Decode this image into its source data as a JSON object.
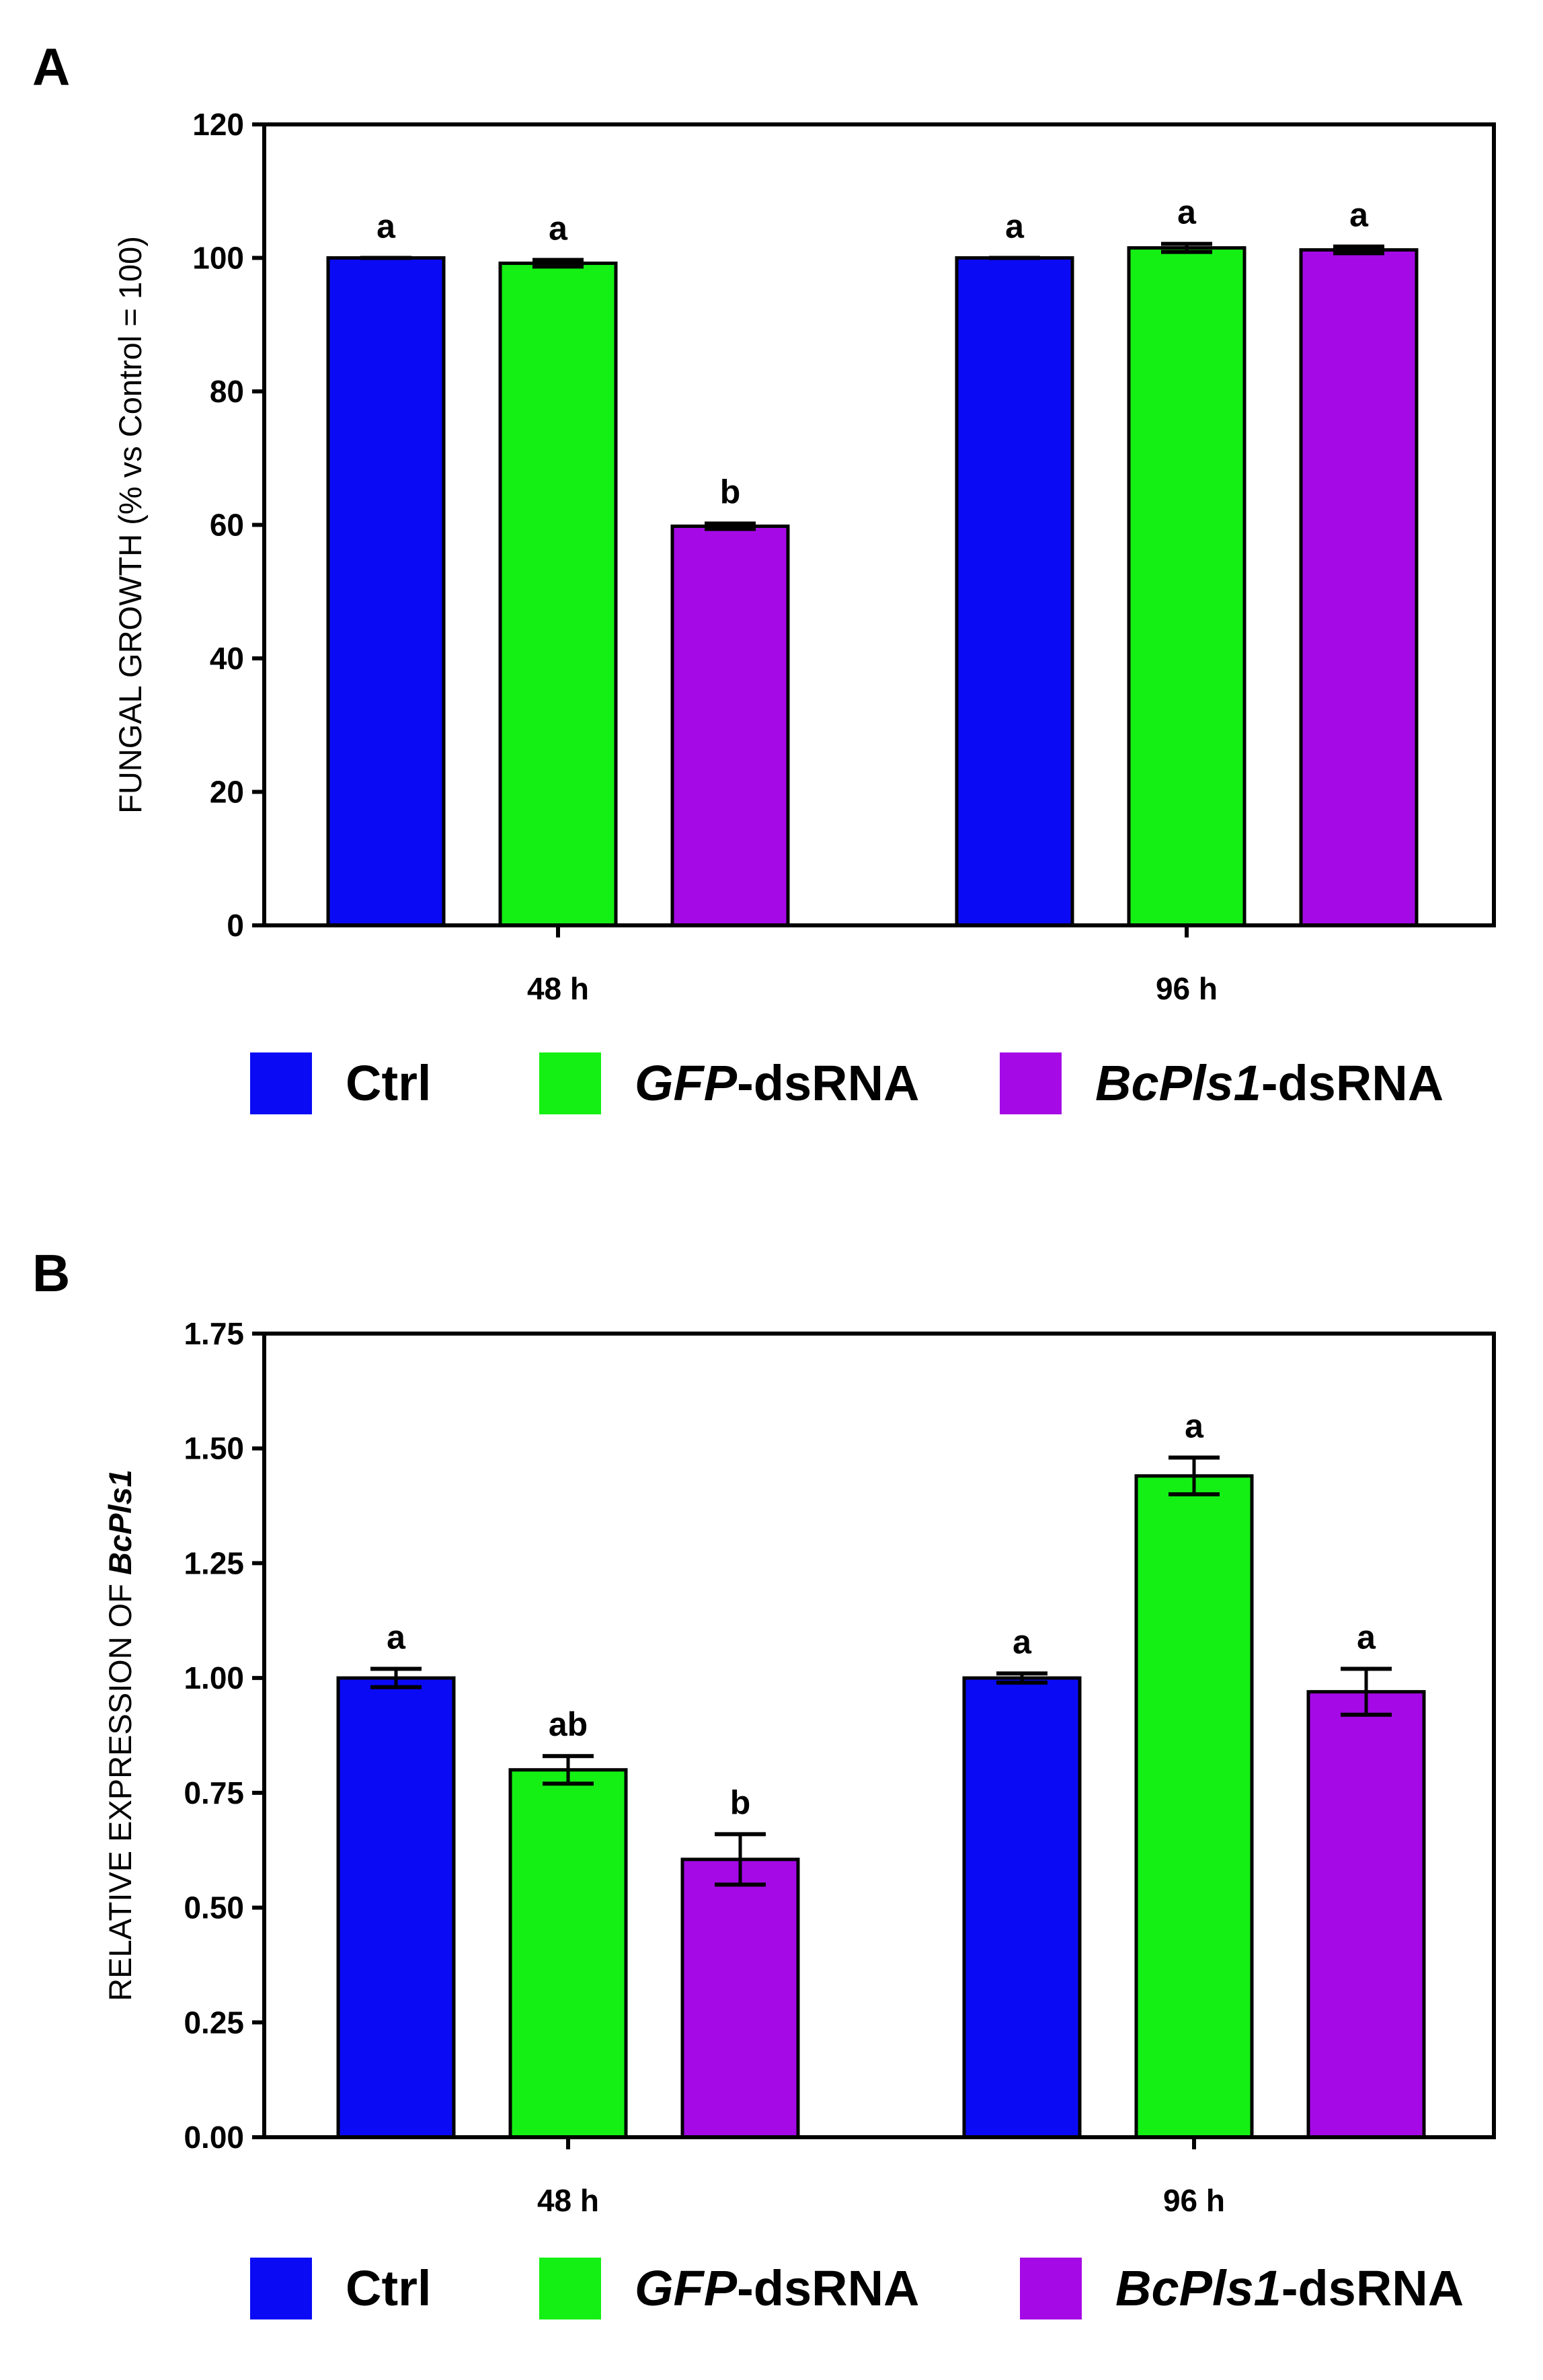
{
  "chart_data": [
    {
      "type": "bar",
      "panel": "A",
      "categories": [
        "48 h",
        "96 h"
      ],
      "series": [
        {
          "name": "Ctrl",
          "color": "#0a0af5",
          "values": [
            100,
            100
          ],
          "errors": [
            0,
            0
          ],
          "sig": [
            "a",
            "a"
          ]
        },
        {
          "name": "GFP-dsRNA",
          "color": "#14f014",
          "values": [
            99.2,
            101.5
          ],
          "errors": [
            0.5,
            0.6
          ],
          "sig": [
            "a",
            "a"
          ]
        },
        {
          "name": "BcPls1-dsRNA",
          "color": "#a50ae6",
          "values": [
            59.8,
            101.2
          ],
          "errors": [
            0.4,
            0.5
          ],
          "sig": [
            "b",
            "a"
          ]
        }
      ],
      "ylabel": "FUNGAL GROWTH (% vs Control = 100)",
      "ylim": [
        0,
        120
      ],
      "yticks": [
        "0",
        "20",
        "40",
        "60",
        "80",
        "100",
        "120"
      ],
      "legend": [
        {
          "italic": "",
          "text": "Ctrl"
        },
        {
          "italic": "GFP",
          "text": "-dsRNA"
        },
        {
          "italic": "BcPls1",
          "text": "-dsRNA"
        }
      ]
    },
    {
      "type": "bar",
      "panel": "B",
      "categories": [
        "48 h",
        "96 h"
      ],
      "series": [
        {
          "name": "Ctrl",
          "color": "#0a0af5",
          "values": [
            1.0,
            1.0
          ],
          "errors": [
            0.02,
            0.01
          ],
          "sig": [
            "a",
            "a"
          ]
        },
        {
          "name": "GFP-dsRNA",
          "color": "#14f014",
          "values": [
            0.8,
            1.44
          ],
          "errors": [
            0.03,
            0.04
          ],
          "sig": [
            "ab",
            "a"
          ]
        },
        {
          "name": "BcPls1-dsRNA",
          "color": "#a50ae6",
          "values": [
            0.605,
            0.97
          ],
          "errors": [
            0.055,
            0.05
          ],
          "sig": [
            "b",
            "a"
          ]
        }
      ],
      "ylabel": "RELATIVE EXPRESSION OF ",
      "ylabel_italic": "BcPls1",
      "ylim": [
        0,
        1.75
      ],
      "yticks": [
        "0.00",
        "0.25",
        "0.50",
        "0.75",
        "1.00",
        "1.25",
        "1.50",
        "1.75"
      ],
      "legend": [
        {
          "italic": "",
          "text": "Ctrl"
        },
        {
          "italic": "GFP",
          "text": "-dsRNA"
        },
        {
          "italic": "BcPls1",
          "text": "-dsRNA"
        }
      ]
    }
  ]
}
